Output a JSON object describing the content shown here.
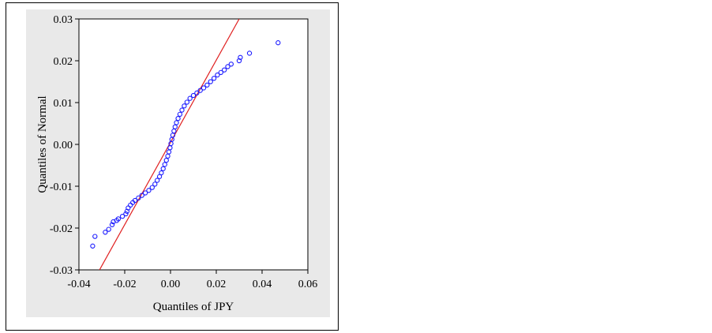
{
  "chart_data": {
    "type": "scatter",
    "title": "",
    "xlabel": "Quantiles of JPY",
    "ylabel": "Quantiles of Normal",
    "xlim": [
      -0.04,
      0.06
    ],
    "ylim": [
      -0.03,
      0.03
    ],
    "x_ticks": [
      "-0.04",
      "-0.02",
      "0.00",
      "0.02",
      "0.04",
      "0.06"
    ],
    "y_ticks": [
      "-0.03",
      "-0.02",
      "-0.01",
      "0.00",
      "0.01",
      "0.02",
      "0.03"
    ],
    "grid": false,
    "colors": {
      "points": "#1a1aff",
      "reference_line": "#e02020",
      "panel_background": "#e9e9e9"
    },
    "reference_line": {
      "x": [
        -0.031,
        0.03
      ],
      "y": [
        -0.03,
        0.03
      ]
    },
    "series": [
      {
        "points": [
          [
            -0.034,
            -0.0243
          ],
          [
            -0.033,
            -0.022
          ],
          [
            -0.0285,
            -0.021
          ],
          [
            -0.027,
            -0.0203
          ],
          [
            -0.0255,
            -0.0192
          ],
          [
            -0.025,
            -0.0185
          ],
          [
            -0.0235,
            -0.0182
          ],
          [
            -0.0228,
            -0.0178
          ],
          [
            -0.021,
            -0.0172
          ],
          [
            -0.0195,
            -0.0166
          ],
          [
            -0.019,
            -0.016
          ],
          [
            -0.0185,
            -0.0152
          ],
          [
            -0.0175,
            -0.0145
          ],
          [
            -0.0165,
            -0.0139
          ],
          [
            -0.0155,
            -0.0134
          ],
          [
            -0.014,
            -0.0128
          ],
          [
            -0.0125,
            -0.0122
          ],
          [
            -0.011,
            -0.0116
          ],
          [
            -0.0095,
            -0.011
          ],
          [
            -0.008,
            -0.0103
          ],
          [
            -0.0068,
            -0.0095
          ],
          [
            -0.0058,
            -0.0086
          ],
          [
            -0.0048,
            -0.0077
          ],
          [
            -0.004,
            -0.0068
          ],
          [
            -0.0032,
            -0.0058
          ],
          [
            -0.0025,
            -0.0048
          ],
          [
            -0.0018,
            -0.0038
          ],
          [
            -0.0012,
            -0.0028
          ],
          [
            -0.0007,
            -0.0018
          ],
          [
            -0.0002,
            -0.0008
          ],
          [
            0.0002,
            0.0002
          ],
          [
            0.0006,
            0.0012
          ],
          [
            0.001,
            0.0022
          ],
          [
            0.0015,
            0.0032
          ],
          [
            0.002,
            0.0042
          ],
          [
            0.0026,
            0.0052
          ],
          [
            0.0033,
            0.0062
          ],
          [
            0.0041,
            0.0072
          ],
          [
            0.005,
            0.0082
          ],
          [
            0.006,
            0.0092
          ],
          [
            0.0072,
            0.0101
          ],
          [
            0.0085,
            0.011
          ],
          [
            0.01,
            0.0117
          ],
          [
            0.0115,
            0.0123
          ],
          [
            0.013,
            0.0129
          ],
          [
            0.0145,
            0.0135
          ],
          [
            0.016,
            0.0142
          ],
          [
            0.0175,
            0.015
          ],
          [
            0.019,
            0.0158
          ],
          [
            0.0205,
            0.0166
          ],
          [
            0.022,
            0.0172
          ],
          [
            0.0235,
            0.0178
          ],
          [
            0.025,
            0.0186
          ],
          [
            0.0265,
            0.0192
          ],
          [
            0.03,
            0.02
          ],
          [
            0.0305,
            0.0208
          ],
          [
            0.0345,
            0.0218
          ],
          [
            0.047,
            0.0243
          ]
        ]
      }
    ]
  }
}
